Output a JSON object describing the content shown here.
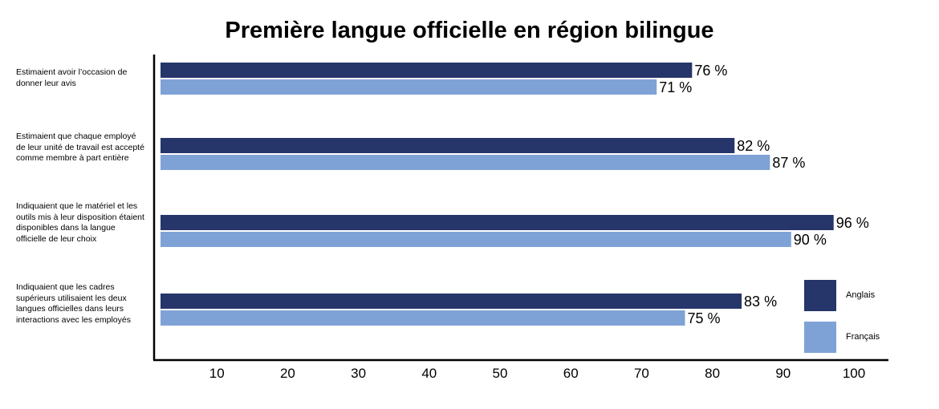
{
  "chart_data": {
    "type": "bar",
    "orientation": "horizontal",
    "title": "Première langue officielle en région bilingue",
    "categories": [
      "Estimaient avoir l’occasion de donner leur avis",
      "Estimaient que chaque employé de leur unité de travail est accepté comme membre à part entière",
      "Indiquaient que le matériel et les outils mis à leur disposition étaient disponibles dans la langue officielle de leur choix",
      "Indiquaient que les cadres supérieurs utilisaient les deux langues officielles dans leurs interactions avec les employés"
    ],
    "series": [
      {
        "name": "Anglais",
        "color": "#26356a",
        "values": [
          76,
          82,
          96,
          83
        ],
        "labels": [
          "76 %",
          "82 %",
          "96 %",
          "83 %"
        ]
      },
      {
        "name": "Français",
        "color": "#7fa2d6",
        "values": [
          71,
          87,
          90,
          75
        ],
        "labels": [
          "71 %",
          "87 %",
          "90 %",
          "75 %"
        ]
      }
    ],
    "xticks": [
      "10",
      "20",
      "30",
      "40",
      "50",
      "60",
      "70",
      "80",
      "90",
      "100"
    ],
    "xlim": [
      0,
      100
    ],
    "grid": false,
    "legend_position": "bottom-right"
  }
}
